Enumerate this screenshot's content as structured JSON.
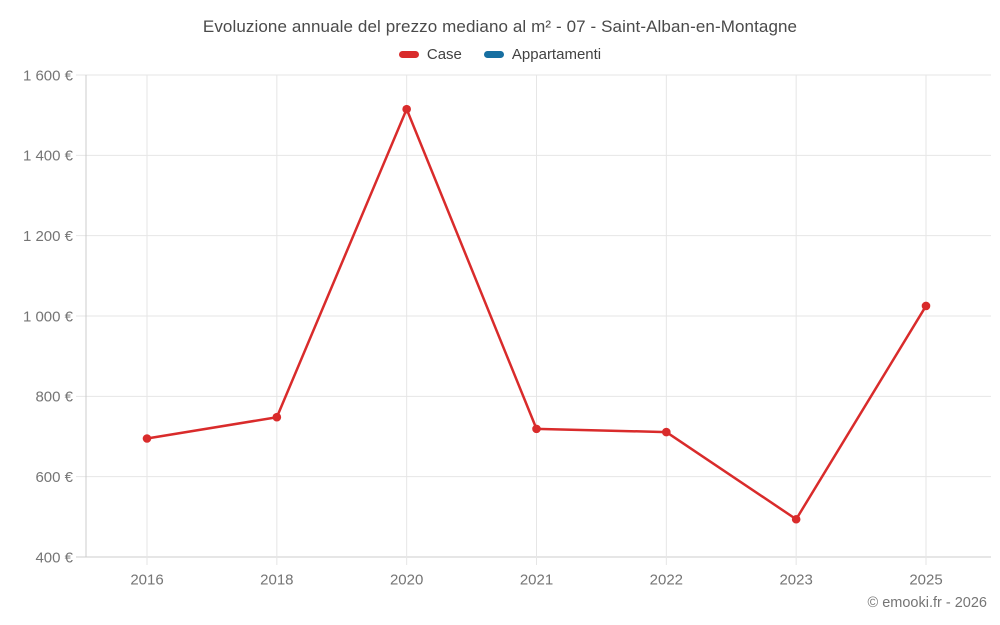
{
  "title": "Evoluzione annuale del prezzo mediano al m² - 07 - Saint-Alban-en-Montagne",
  "legend": {
    "items": [
      {
        "label": "Case",
        "color": "#d92b2b"
      },
      {
        "label": "Appartamenti",
        "color": "#176fa1"
      }
    ]
  },
  "footer": {
    "credit": "© emooki.fr - 2026"
  },
  "colors": {
    "grid": "#e6e6e6",
    "axis": "#cccccc",
    "tick_text": "#757575",
    "title_text": "#4a4a4a"
  },
  "chart_data": {
    "type": "line",
    "title": "Evoluzione annuale del prezzo mediano al m² - 07 - Saint-Alban-en-Montagne",
    "categories": [
      "2016",
      "2018",
      "2020",
      "2021",
      "2022",
      "2023",
      "2025"
    ],
    "series": [
      {
        "name": "Case",
        "color": "#d92b2b",
        "values": [
          695,
          748,
          1515,
          719,
          711,
          494,
          1025
        ]
      },
      {
        "name": "Appartamenti",
        "color": "#176fa1",
        "values": []
      }
    ],
    "xlabel": "",
    "ylabel": "",
    "ylim": [
      400,
      1600
    ],
    "ytick_step": 200,
    "yticks": [
      {
        "value": 400,
        "label": "400 €"
      },
      {
        "value": 600,
        "label": "600 €"
      },
      {
        "value": 800,
        "label": "800 €"
      },
      {
        "value": 1000,
        "label": "1 000 €"
      },
      {
        "value": 1200,
        "label": "1 200 €"
      },
      {
        "value": 1400,
        "label": "1 400 €"
      },
      {
        "value": 1600,
        "label": "1 600 €"
      }
    ],
    "grid": true,
    "legend_position": "top",
    "currency": "€"
  }
}
